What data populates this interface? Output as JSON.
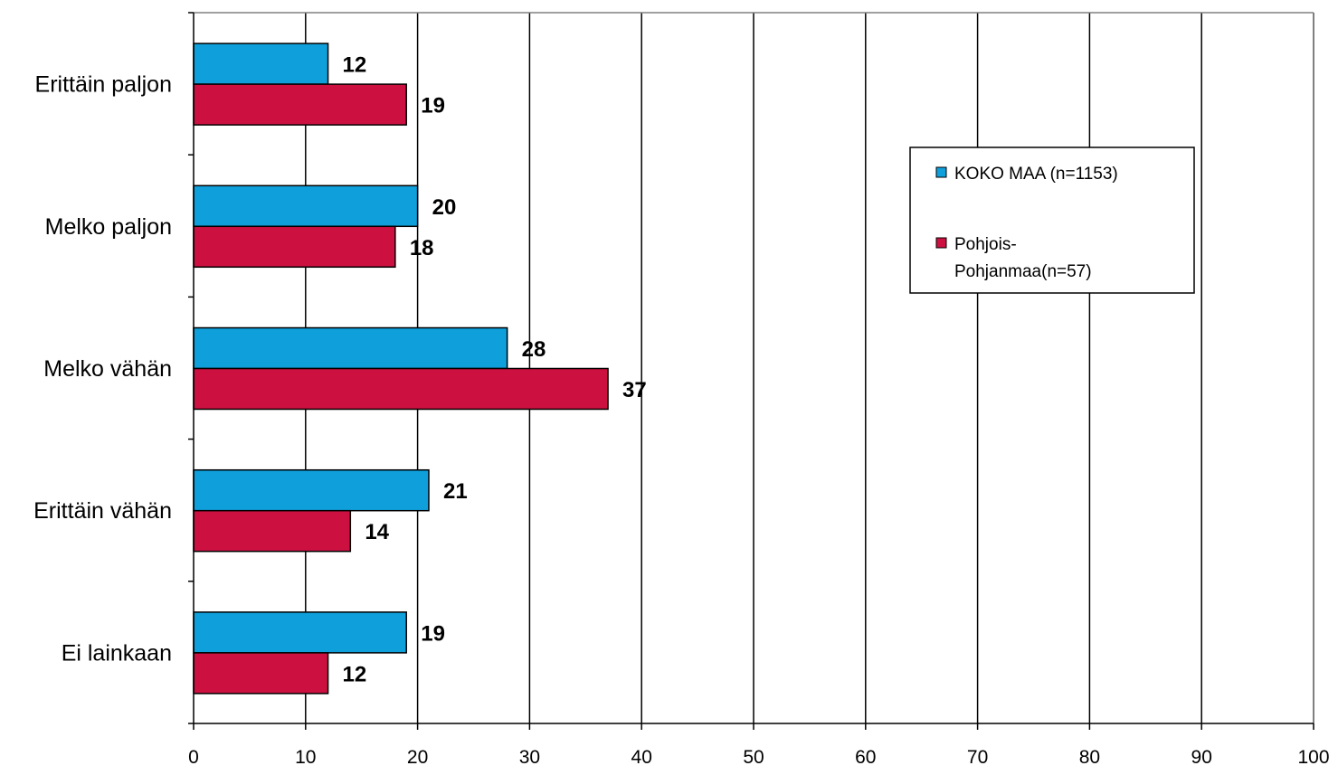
{
  "chart_data": {
    "type": "bar",
    "orientation": "horizontal",
    "categories": [
      "Erittäin paljon",
      "Melko paljon",
      "Melko vähän",
      "Erittäin vähän",
      "Ei lainkaan"
    ],
    "series": [
      {
        "name": "KOKO MAA (n=1153)",
        "color": "#0fa0dc",
        "values": [
          12,
          20,
          28,
          21,
          19
        ]
      },
      {
        "name": "Pohjois-Pohjanmaa(n=57)",
        "legend_lines": [
          "Pohjois-",
          "Pohjanmaa(n=57)"
        ],
        "color": "#cc1141",
        "values": [
          19,
          18,
          37,
          14,
          12
        ]
      }
    ],
    "xlim": [
      0,
      100
    ],
    "x_ticks": [
      0,
      10,
      20,
      30,
      40,
      50,
      60,
      70,
      80,
      90,
      100
    ],
    "grid": "vertical major gridlines",
    "legend_position": "right",
    "data_labels": true,
    "title": "",
    "xlabel": "",
    "ylabel": ""
  }
}
